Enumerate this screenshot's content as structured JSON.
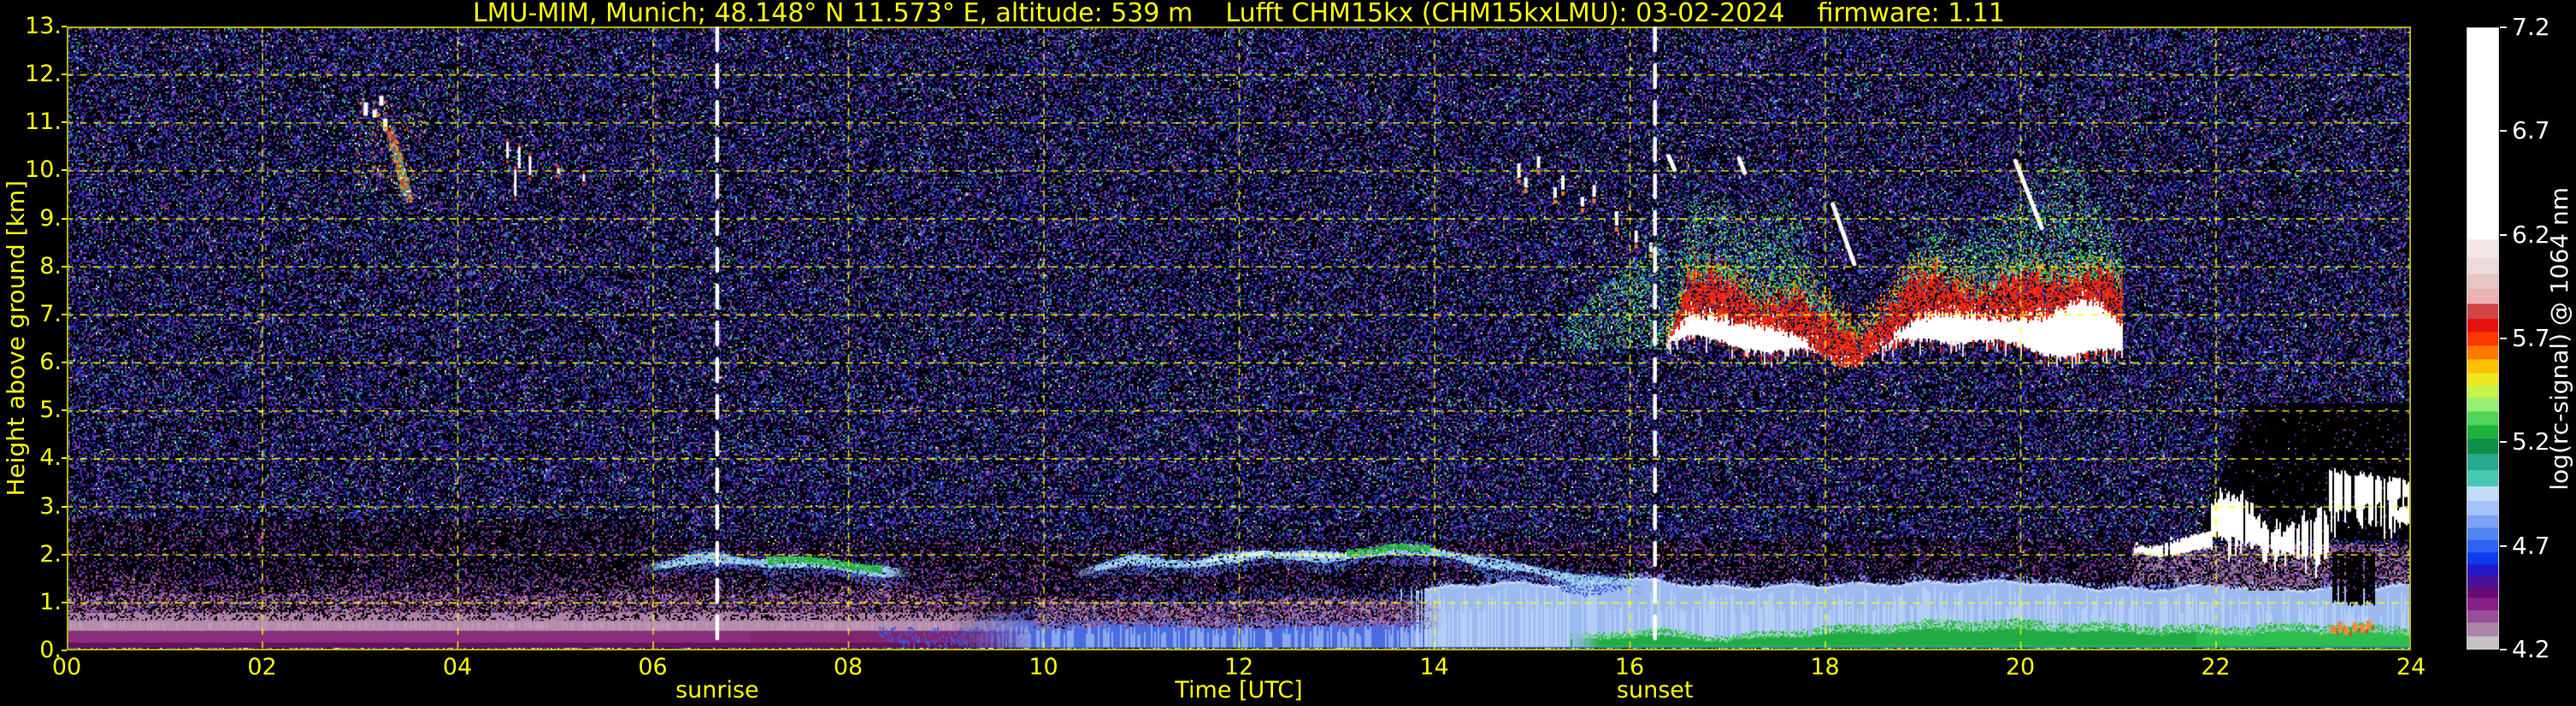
{
  "chart_data": {
    "type": "heatmap",
    "title": "LMU-MIM, Munich; 48.148° N 11.573° E, altitude: 539 m    Lufft CHM15kx (CHM15kxLMU): 03-02-2024    firmware: 1.11",
    "xlabel": "Time [UTC]",
    "ylabel": "Height above ground [km]",
    "x_range_hours": [
      0,
      24
    ],
    "y_range_km": [
      0,
      13
    ],
    "axis_color": "#ffff00",
    "background_color": "#000000",
    "grid": {
      "color": "rgba(255,255,0,0.9)",
      "x_step_hours": 2,
      "y_step_km": 1,
      "style": "dashed"
    },
    "x_ticks": [
      {
        "label": "00",
        "hour": 0
      },
      {
        "label": "02",
        "hour": 2
      },
      {
        "label": "04",
        "hour": 4
      },
      {
        "label": "06",
        "hour": 6
      },
      {
        "label": "08",
        "hour": 8
      },
      {
        "label": "10",
        "hour": 10
      },
      {
        "label": "12",
        "hour": 12
      },
      {
        "label": "14",
        "hour": 14
      },
      {
        "label": "16",
        "hour": 16
      },
      {
        "label": "18",
        "hour": 18
      },
      {
        "label": "20",
        "hour": 20
      },
      {
        "label": "22",
        "hour": 22
      },
      {
        "label": "24",
        "hour": 24
      }
    ],
    "y_ticks": [
      {
        "label": "0.",
        "km": 0
      },
      {
        "label": "1.",
        "km": 1
      },
      {
        "label": "2.",
        "km": 2
      },
      {
        "label": "3.",
        "km": 3
      },
      {
        "label": "4.",
        "km": 4
      },
      {
        "label": "5.",
        "km": 5
      },
      {
        "label": "6.",
        "km": 6
      },
      {
        "label": "7.",
        "km": 7
      },
      {
        "label": "8.",
        "km": 8
      },
      {
        "label": "9.",
        "km": 9
      },
      {
        "label": "10.",
        "km": 10
      },
      {
        "label": "11.",
        "km": 11
      },
      {
        "label": "12.",
        "km": 12
      },
      {
        "label": "13.",
        "km": 13
      }
    ],
    "markers": [
      {
        "label": "sunrise",
        "hour": 6.66,
        "line_color": "#ffffff"
      },
      {
        "label": "sunset",
        "hour": 16.26,
        "line_color": "#ffffff"
      }
    ],
    "colorbar": {
      "label": "log(rc-signal) @ 1064 nm",
      "range": [
        4.2,
        7.2
      ],
      "tick_color": "#ffffff",
      "ticks": [
        {
          "label": "7.2",
          "value": 7.2
        },
        {
          "label": "6.7",
          "value": 6.7
        },
        {
          "label": "6.2",
          "value": 6.2
        },
        {
          "label": "5.7",
          "value": 5.7
        },
        {
          "label": "5.2",
          "value": 5.2
        },
        {
          "label": "4.7",
          "value": 4.7
        },
        {
          "label": "4.2",
          "value": 4.2
        }
      ],
      "stops_bottom_to_top": [
        [
          0.0,
          "#c8c2c8"
        ],
        [
          0.02,
          "#ac84ac"
        ],
        [
          0.042,
          "#9a4e9a"
        ],
        [
          0.062,
          "#861e86"
        ],
        [
          0.082,
          "#660a76"
        ],
        [
          0.1,
          "#46109c"
        ],
        [
          0.118,
          "#2318c8"
        ],
        [
          0.136,
          "#0a3cee"
        ],
        [
          0.155,
          "#2e62f4"
        ],
        [
          0.175,
          "#5484f0"
        ],
        [
          0.195,
          "#7ca2f4"
        ],
        [
          0.215,
          "#a4c4f8"
        ],
        [
          0.238,
          "#c2dcfa"
        ],
        [
          0.262,
          "#44c8b2"
        ],
        [
          0.288,
          "#28a88e"
        ],
        [
          0.314,
          "#109048"
        ],
        [
          0.338,
          "#1cb23c"
        ],
        [
          0.36,
          "#52d45c"
        ],
        [
          0.382,
          "#96ee74"
        ],
        [
          0.404,
          "#c8f44c"
        ],
        [
          0.424,
          "#f0e81e"
        ],
        [
          0.444,
          "#ffc000"
        ],
        [
          0.466,
          "#ff7800"
        ],
        [
          0.488,
          "#fa3800"
        ],
        [
          0.51,
          "#e61212"
        ],
        [
          0.532,
          "#d04545"
        ],
        [
          0.556,
          "#eab4b4"
        ],
        [
          0.58,
          "#e8c6c6"
        ],
        [
          0.604,
          "#eddada"
        ],
        [
          0.63,
          "#f2e8e8"
        ],
        [
          0.66,
          "#ffffff"
        ]
      ]
    },
    "features": [
      {
        "id": "background-noise",
        "type": "noise",
        "density": 0.42,
        "low_density_region": {
          "t": [
            0,
            6.0
          ],
          "h": [
            1.3,
            2.75
          ],
          "density": 0.3
        }
      },
      {
        "id": "attenuation-shadow",
        "type": "blackout",
        "t": [
          21.85,
          24
        ],
        "h": [
          2.3,
          5.15
        ]
      },
      {
        "id": "daytime-blue-layer",
        "type": "blue_bl",
        "t": [
          8.7,
          24
        ],
        "top_profile": [
          [
            8.7,
            0.35
          ],
          [
            9.2,
            0.6
          ],
          [
            10,
            1.0
          ],
          [
            10.8,
            1.22
          ],
          [
            12,
            1.28
          ],
          [
            13,
            1.3
          ],
          [
            14,
            1.3
          ],
          [
            14.6,
            1.42
          ],
          [
            15.4,
            1.38
          ],
          [
            16,
            1.52
          ],
          [
            16.4,
            1.42
          ],
          [
            17,
            1.32
          ],
          [
            18,
            1.38
          ],
          [
            19,
            1.42
          ],
          [
            20,
            1.45
          ],
          [
            20.7,
            1.32
          ],
          [
            21.3,
            1.28
          ],
          [
            22,
            1.38
          ],
          [
            22.7,
            1.3
          ],
          [
            23.3,
            1.28
          ],
          [
            24,
            1.38
          ]
        ]
      },
      {
        "id": "nocturnal-purple-layer",
        "type": "purple_bl",
        "t": [
          0,
          9.9
        ],
        "top_km": 1.2
      },
      {
        "id": "residual-purple-band",
        "type": "mauve_band",
        "t": [
          9.9,
          14.1
        ],
        "h": [
          0.5,
          1.05
        ]
      },
      {
        "id": "morning-aerosol-layer",
        "type": "elevated_layer",
        "t": [
          5.85,
          8.65
        ],
        "centers": [
          1.75,
          1.92,
          1.85,
          1.76,
          1.58
        ],
        "green_t": [
          7.15,
          8.35
        ]
      },
      {
        "id": "midday-aerosol-layer",
        "type": "elevated_layer",
        "t": [
          10.3,
          16.15
        ],
        "centers": [
          1.6,
          1.9,
          1.8,
          2.05,
          1.92,
          2.12,
          2.0,
          1.72,
          1.5,
          1.38
        ],
        "green_t": [
          13.1,
          13.95
        ],
        "bright_t": [
          11.6,
          13.2
        ]
      },
      {
        "id": "surface-green-layer",
        "type": "green_surface",
        "t": [
          15.4,
          24
        ],
        "top_profile": [
          [
            15.4,
            0.3
          ],
          [
            16.1,
            0.45
          ],
          [
            17,
            0.3
          ],
          [
            18,
            0.5
          ],
          [
            19.5,
            0.65
          ],
          [
            21,
            0.55
          ],
          [
            22,
            0.5
          ],
          [
            23,
            0.55
          ],
          [
            24,
            0.5
          ]
        ]
      },
      {
        "id": "cirrus-streaks-early",
        "type": "cirrus_a",
        "t": [
          2.95,
          3.65
        ],
        "h": [
          9.4,
          11.6
        ],
        "dashes": [
          [
            3.04,
            11.42,
            0.28
          ],
          [
            3.13,
            11.28,
            0.18
          ],
          [
            3.2,
            11.55,
            0.2
          ],
          [
            3.24,
            11.08,
            0.25
          ]
        ],
        "streak": {
          "t": [
            3.3,
            3.5
          ],
          "h": [
            10.85,
            9.4
          ]
        }
      },
      {
        "id": "cirrus-streaks-second",
        "type": "cirrus_b",
        "t": [
          4.45,
          5.3
        ],
        "dashes": [
          [
            4.5,
            10.6,
            0.35
          ],
          [
            4.62,
            10.5,
            0.45
          ],
          [
            4.73,
            10.3,
            0.4
          ],
          [
            4.58,
            10.02,
            0.55
          ],
          [
            5.02,
            10.05,
            0.12
          ],
          [
            5.28,
            9.92,
            0.15
          ]
        ]
      },
      {
        "id": "pre-cloud-wisps",
        "type": "pre_cloud",
        "t": [
          14.8,
          16.38
        ],
        "dashes": [
          [
            14.85,
            10.15,
            0.3
          ],
          [
            14.92,
            9.85,
            0.2
          ],
          [
            15.05,
            10.3,
            0.25
          ],
          [
            15.22,
            9.65,
            0.22
          ],
          [
            15.3,
            9.9,
            0.3
          ],
          [
            15.5,
            9.45,
            0.2
          ],
          [
            15.62,
            9.7,
            0.25
          ],
          [
            15.85,
            9.15,
            0.3
          ],
          [
            16.05,
            8.75,
            0.25
          ],
          [
            16.2,
            8.5,
            0.2
          ]
        ],
        "green_wedge": {
          "t": [
            15.3,
            16.38
          ],
          "h_bottom": 6.3
        }
      },
      {
        "id": "mid-level-cloud",
        "type": "mid_cloud",
        "t": [
          16.38,
          21.05
        ],
        "base_km": 6.32,
        "top_km_max": 8.35,
        "plume_top_km": 10.9,
        "virga": [
          [
            18.08,
            9.3,
            18.3,
            8.05
          ],
          [
            19.95,
            10.2,
            20.22,
            8.8
          ],
          [
            17.12,
            10.25,
            17.18,
            9.95
          ],
          [
            16.4,
            10.3,
            16.46,
            10.02
          ]
        ]
      },
      {
        "id": "stratocumulus-evening",
        "type": "low_cloud",
        "t": [
          21.15,
          24
        ],
        "thin_t": [
          21.15,
          21.95
        ],
        "mid_t": [
          21.95,
          23.15
        ],
        "high_t": [
          23.15,
          24
        ],
        "curtain_bottom_km": 1.35,
        "gap_t": [
          23.17,
          23.62
        ],
        "orange_dashes": [
          [
            23.2,
            0.52
          ],
          [
            23.27,
            0.6
          ],
          [
            23.33,
            0.5
          ],
          [
            23.42,
            0.58
          ],
          [
            23.5,
            0.55
          ],
          [
            23.56,
            0.62
          ]
        ]
      },
      {
        "id": "ground-return",
        "type": "ground",
        "h": [
          0,
          0.05
        ]
      }
    ]
  }
}
